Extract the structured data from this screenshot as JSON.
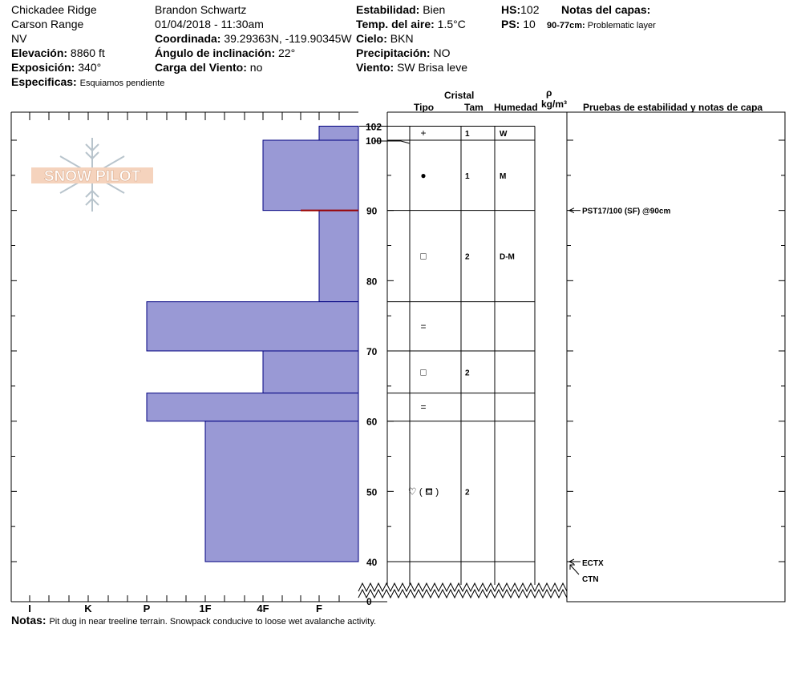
{
  "header": {
    "location": "Chickadee Ridge",
    "range": "Carson Range",
    "state": "NV",
    "elevation_label": "Elevación:",
    "elevation": "8860 ft",
    "aspect_label": "Exposición:",
    "aspect": "340°",
    "specifics_label": "Especificas:",
    "specifics": "Esquiamos pendiente",
    "observer": "Brandon Schwartz",
    "datetime": "01/04/2018 - 11:30am",
    "coord_label": "Coordinada:",
    "coord": "39.29363N, -119.90345W",
    "slope_label": "Ángulo de inclinación:",
    "slope": "22°",
    "wind_load_label": "Carga del Viento:",
    "wind_load": "no",
    "stability_label": "Estabilidad:",
    "stability": "Bien",
    "air_temp_label": "Temp. del aire:",
    "air_temp": "1.5°C",
    "sky_label": "Cielo:",
    "sky": "BKN",
    "precip_label": "Precipitación:",
    "precip": "NO",
    "wind_label": "Viento:",
    "wind": "SW Brisa leve",
    "hs_label": "HS:",
    "hs": "102",
    "ps_label": "PS:",
    "ps": "10",
    "layer_notes_label": "Notas del capas:",
    "layer_note_range": "90-77cm:",
    "layer_note": "Problematic layer"
  },
  "logo_text": "SNOW PILOT",
  "notes_label": "Notas:",
  "notes": "Pit dug in near treeline terrain. Snowpack conducive to loose wet avalanche activity.",
  "columns": {
    "cristal": "Cristal",
    "tipo": "Tipo",
    "tam": "Tam",
    "humedad": "Humedad",
    "rho": "ρ",
    "density_unit": "kg/m³",
    "tests_title": "Pruebas de estabilidad y notas de capa"
  },
  "colors": {
    "layer_fill": "#9999d5",
    "layer_stroke": "#000080",
    "weak_layer": "#990000"
  },
  "chart_data": {
    "type": "bar",
    "orientation": "horizontal",
    "x_axis_categories": [
      "I",
      "K",
      "P",
      "1F",
      "4F",
      "F"
    ],
    "y_label_top": "102",
    "ylim": [
      0,
      102
    ],
    "y_ticks": [
      0,
      40,
      50,
      60,
      70,
      80,
      90,
      100
    ],
    "y_break_between": [
      0,
      40
    ],
    "weak_layer_depth": 90,
    "hardness_layers": [
      {
        "top": 102,
        "bottom": 100,
        "hardness": "F"
      },
      {
        "top": 100,
        "bottom": 90,
        "hardness": "4F"
      },
      {
        "top": 90,
        "bottom": 77,
        "hardness": "F"
      },
      {
        "top": 77,
        "bottom": 70,
        "hardness": "P"
      },
      {
        "top": 70,
        "bottom": 64,
        "hardness": "4F"
      },
      {
        "top": 64,
        "bottom": 60,
        "hardness": "P"
      },
      {
        "top": 60,
        "bottom": 40,
        "hardness": "1F"
      }
    ],
    "layers": [
      {
        "top": 102,
        "bottom": 100,
        "crystal": "+",
        "size": "1",
        "moisture": "W"
      },
      {
        "top": 100,
        "bottom": 90,
        "crystal": "●",
        "size": "1",
        "moisture": "M"
      },
      {
        "top": 90,
        "bottom": 77,
        "crystal": "□",
        "size": "2",
        "moisture": "D-M"
      },
      {
        "top": 77,
        "bottom": 70,
        "crystal": "=",
        "size": "",
        "moisture": ""
      },
      {
        "top": 70,
        "bottom": 64,
        "crystal": "□",
        "size": "2",
        "moisture": ""
      },
      {
        "top": 64,
        "bottom": 60,
        "crystal": "=",
        "size": "",
        "moisture": ""
      },
      {
        "top": 60,
        "bottom": 40,
        "crystal": "♡ ( ⛾ )",
        "size": "2",
        "moisture": ""
      }
    ],
    "stability_tests": [
      {
        "depth": 90,
        "text": "PST17/100 (SF) @90cm"
      },
      {
        "depth": 39,
        "text": "ECTX"
      },
      {
        "depth": 39,
        "text": "CTN"
      }
    ]
  }
}
